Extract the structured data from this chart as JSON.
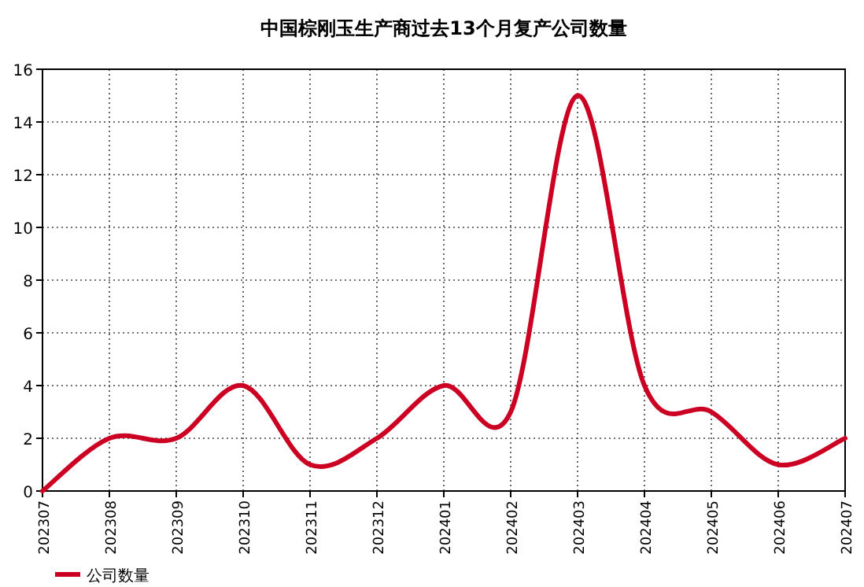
{
  "chart_data": {
    "type": "line",
    "title": "中国棕刚玉生产商过去13个月复产公司数量",
    "categories": [
      "202307",
      "202308",
      "202309",
      "202310",
      "202311",
      "202312",
      "202401",
      "202402",
      "202403",
      "202404",
      "202405",
      "202406",
      "202407"
    ],
    "series": [
      {
        "name": "公司数量",
        "color": "#cc0022",
        "values": [
          0,
          2,
          2,
          4,
          1,
          2,
          4,
          3,
          15,
          4,
          3,
          1,
          2
        ]
      }
    ],
    "ylim": [
      0,
      16
    ],
    "yticks": [
      0,
      2,
      4,
      6,
      8,
      10,
      12,
      14,
      16
    ],
    "grid": true,
    "legend": "bottom",
    "marker": "none",
    "line_style": "solid"
  }
}
